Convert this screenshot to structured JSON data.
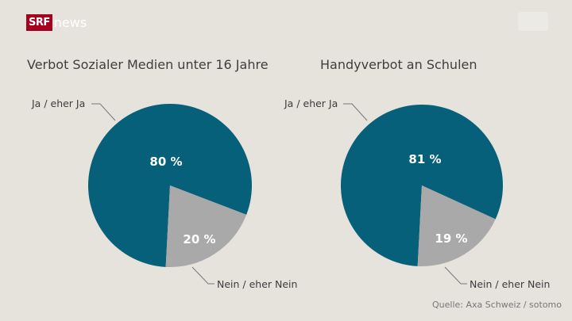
{
  "brand": {
    "srf": "SRF",
    "news": "news"
  },
  "source": "Quelle: Axa Schweiz / sotomo",
  "colors": {
    "yes": "#07607a",
    "no": "#a9a9a9",
    "background": "#e6e3dd"
  },
  "chart_data": [
    {
      "type": "pie",
      "title": "Verbot Sozialer Medien unter 16 Jahre",
      "slices": [
        {
          "label": "Ja / eher Ja",
          "value": 80,
          "value_label": "80 %"
        },
        {
          "label": "Nein / eher Nein",
          "value": 20,
          "value_label": "20 %"
        }
      ]
    },
    {
      "type": "pie",
      "title": "Handyverbot an Schulen",
      "slices": [
        {
          "label": "Ja / eher Ja",
          "value": 81,
          "value_label": "81 %"
        },
        {
          "label": "Nein / eher Nein",
          "value": 19,
          "value_label": "19 %"
        }
      ]
    }
  ]
}
